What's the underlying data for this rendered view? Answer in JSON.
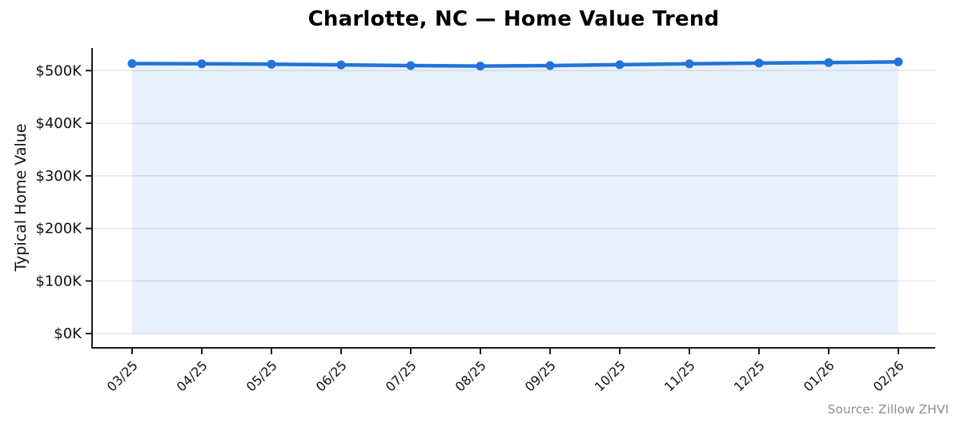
{
  "chart_data": {
    "type": "line",
    "title": "Charlotte, NC — Home Value Trend",
    "ylabel": "Typical Home Value",
    "xlabel": "",
    "source_text": "Source: Zillow ZHVI",
    "categories": [
      "03/25",
      "04/25",
      "05/25",
      "06/25",
      "07/25",
      "08/25",
      "09/25",
      "10/25",
      "11/25",
      "12/25",
      "01/26",
      "02/26"
    ],
    "values_usd": [
      513400,
      512900,
      512100,
      511000,
      509600,
      508700,
      509500,
      511300,
      512900,
      514200,
      515300,
      516500
    ],
    "y_ticks": [
      {
        "label": "$0K",
        "value": 0
      },
      {
        "label": "$100K",
        "value": 100000
      },
      {
        "label": "$200K",
        "value": 200000
      },
      {
        "label": "$300K",
        "value": 300000
      },
      {
        "label": "$400K",
        "value": 400000
      },
      {
        "label": "$500K",
        "value": 500000
      }
    ],
    "ylim_usd": [
      -27000,
      543000
    ],
    "grid": "horizontal",
    "legend": "none",
    "area_fill": true,
    "marker": "circle",
    "colors": {
      "line": "#2273da",
      "fill": "rgba(34, 115, 218, 0.10)",
      "grid": "#e4e6eb",
      "axis": "#1a1a1a",
      "tick_text": "#111111",
      "title_text": "#000000",
      "source_text": "#8e8e8e"
    }
  }
}
